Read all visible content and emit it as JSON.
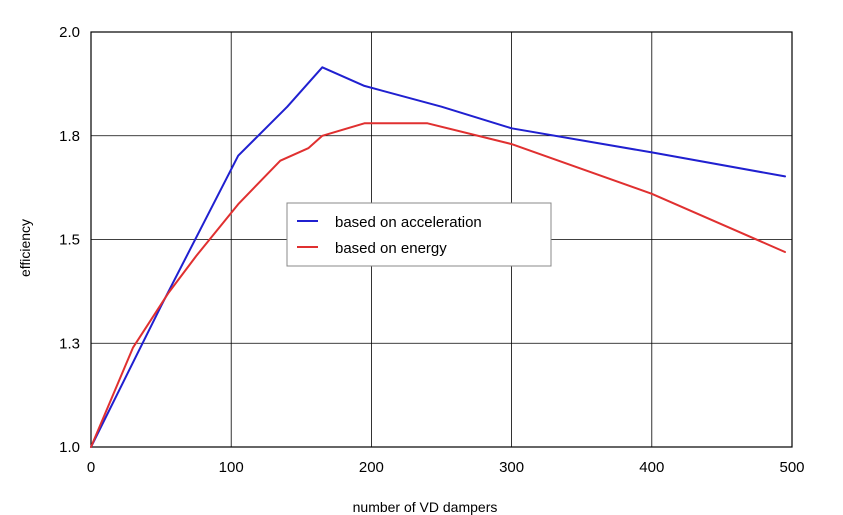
{
  "chart_data": {
    "type": "line",
    "title": "",
    "xlabel": "number of VD dampers",
    "ylabel": "efficiency",
    "xlim": [
      0,
      500
    ],
    "ylim": [
      1.0,
      2.0
    ],
    "x_ticks": [
      0,
      100,
      200,
      300,
      400,
      500
    ],
    "y_ticks": [
      1.0,
      1.25,
      1.5,
      1.75,
      2.0
    ],
    "x_tick_labels": [
      "0",
      "100",
      "200",
      "300",
      "400",
      "500"
    ],
    "y_tick_labels": [
      "1.0",
      "1.3",
      "1.5",
      "1.8",
      "2.0"
    ],
    "grid": true,
    "legend_position": "center",
    "series": [
      {
        "name": "based on acceleration",
        "color": "#2020d0",
        "x": [
          0,
          50,
          105,
          140,
          165,
          195,
          250,
          300,
          400,
          495
        ],
        "y": [
          1.0,
          1.34,
          1.702,
          1.82,
          1.915,
          1.87,
          1.82,
          1.768,
          1.71,
          1.652
        ]
      },
      {
        "name": "based on energy",
        "color": "#e03030",
        "x": [
          0,
          30,
          55,
          75,
          105,
          135,
          155,
          165,
          195,
          240,
          300,
          400,
          495
        ],
        "y": [
          1.0,
          1.24,
          1.37,
          1.46,
          1.585,
          1.69,
          1.72,
          1.75,
          1.78,
          1.78,
          1.73,
          1.61,
          1.47
        ]
      }
    ]
  }
}
